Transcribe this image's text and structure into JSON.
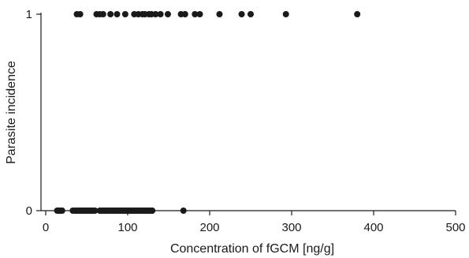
{
  "chart_data": {
    "type": "scatter",
    "title": "",
    "xlabel": "Concentration of fGCM [ng/g]",
    "ylabel": "Parasite incidence",
    "xlim": [
      0,
      500
    ],
    "ylim": [
      0,
      1
    ],
    "x_ticks": [
      0,
      100,
      200,
      300,
      400,
      500
    ],
    "y_ticks": [
      0,
      1
    ],
    "x_tick_labels": [
      "0",
      "100",
      "200",
      "300",
      "400",
      "500"
    ],
    "y_tick_labels": [
      "0",
      "1"
    ],
    "grid": false,
    "point_color": "#1a1a1a",
    "series": [
      {
        "points": [
          {
            "x": 38,
            "y": 1
          },
          {
            "x": 42,
            "y": 1
          },
          {
            "x": 62,
            "y": 1
          },
          {
            "x": 66,
            "y": 1
          },
          {
            "x": 70,
            "y": 1
          },
          {
            "x": 79,
            "y": 1
          },
          {
            "x": 87,
            "y": 1
          },
          {
            "x": 97,
            "y": 1
          },
          {
            "x": 108,
            "y": 1
          },
          {
            "x": 113,
            "y": 1
          },
          {
            "x": 118,
            "y": 1
          },
          {
            "x": 121,
            "y": 1
          },
          {
            "x": 126,
            "y": 1
          },
          {
            "x": 129,
            "y": 1
          },
          {
            "x": 134,
            "y": 1
          },
          {
            "x": 140,
            "y": 1
          },
          {
            "x": 149,
            "y": 1
          },
          {
            "x": 165,
            "y": 1
          },
          {
            "x": 170,
            "y": 1
          },
          {
            "x": 182,
            "y": 1
          },
          {
            "x": 188,
            "y": 1
          },
          {
            "x": 212,
            "y": 1
          },
          {
            "x": 239,
            "y": 1
          },
          {
            "x": 250,
            "y": 1
          },
          {
            "x": 293,
            "y": 1
          },
          {
            "x": 380,
            "y": 1
          },
          {
            "x": 14,
            "y": 0
          },
          {
            "x": 16,
            "y": 0
          },
          {
            "x": 18,
            "y": 0
          },
          {
            "x": 20,
            "y": 0
          },
          {
            "x": 33,
            "y": 0
          },
          {
            "x": 36,
            "y": 0
          },
          {
            "x": 38,
            "y": 0
          },
          {
            "x": 40,
            "y": 0
          },
          {
            "x": 42,
            "y": 0
          },
          {
            "x": 44,
            "y": 0
          },
          {
            "x": 46,
            "y": 0
          },
          {
            "x": 48,
            "y": 0
          },
          {
            "x": 50,
            "y": 0
          },
          {
            "x": 52,
            "y": 0
          },
          {
            "x": 54,
            "y": 0
          },
          {
            "x": 56,
            "y": 0
          },
          {
            "x": 58,
            "y": 0
          },
          {
            "x": 60,
            "y": 0
          },
          {
            "x": 66,
            "y": 0
          },
          {
            "x": 68,
            "y": 0
          },
          {
            "x": 70,
            "y": 0
          },
          {
            "x": 72,
            "y": 0
          },
          {
            "x": 74,
            "y": 0
          },
          {
            "x": 76,
            "y": 0
          },
          {
            "x": 78,
            "y": 0
          },
          {
            "x": 80,
            "y": 0
          },
          {
            "x": 82,
            "y": 0
          },
          {
            "x": 84,
            "y": 0
          },
          {
            "x": 86,
            "y": 0
          },
          {
            "x": 88,
            "y": 0
          },
          {
            "x": 90,
            "y": 0
          },
          {
            "x": 92,
            "y": 0
          },
          {
            "x": 94,
            "y": 0
          },
          {
            "x": 96,
            "y": 0
          },
          {
            "x": 98,
            "y": 0
          },
          {
            "x": 100,
            "y": 0
          },
          {
            "x": 102,
            "y": 0
          },
          {
            "x": 104,
            "y": 0
          },
          {
            "x": 106,
            "y": 0
          },
          {
            "x": 108,
            "y": 0
          },
          {
            "x": 110,
            "y": 0
          },
          {
            "x": 112,
            "y": 0
          },
          {
            "x": 114,
            "y": 0
          },
          {
            "x": 116,
            "y": 0
          },
          {
            "x": 118,
            "y": 0
          },
          {
            "x": 120,
            "y": 0
          },
          {
            "x": 122,
            "y": 0
          },
          {
            "x": 124,
            "y": 0
          },
          {
            "x": 126,
            "y": 0
          },
          {
            "x": 128,
            "y": 0
          },
          {
            "x": 130,
            "y": 0
          },
          {
            "x": 168,
            "y": 0
          }
        ]
      }
    ]
  }
}
